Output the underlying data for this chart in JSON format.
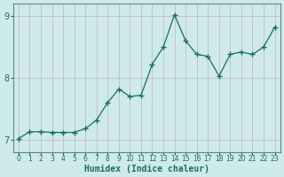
{
  "x": [
    0,
    1,
    2,
    3,
    4,
    5,
    6,
    7,
    8,
    9,
    10,
    11,
    12,
    13,
    14,
    15,
    16,
    17,
    18,
    19,
    20,
    21,
    22,
    23
  ],
  "y": [
    7.02,
    7.13,
    7.13,
    7.12,
    7.12,
    7.12,
    7.18,
    7.32,
    7.6,
    7.82,
    7.7,
    7.72,
    8.22,
    8.5,
    9.02,
    8.6,
    8.38,
    8.35,
    8.03,
    8.38,
    8.42,
    8.38,
    8.5,
    8.82
  ],
  "xlabel": "Humidex (Indice chaleur)",
  "ylim": [
    6.8,
    9.2
  ],
  "xlim": [
    -0.5,
    23.5
  ],
  "yticks": [
    7,
    8,
    9
  ],
  "xticks": [
    0,
    1,
    2,
    3,
    4,
    5,
    6,
    7,
    8,
    9,
    10,
    11,
    12,
    13,
    14,
    15,
    16,
    17,
    18,
    19,
    20,
    21,
    22,
    23
  ],
  "line_color": "#1a6e60",
  "marker": "+",
  "bg_color": "#ceeaea",
  "vgrid_color": "#c8b8c8",
  "hgrid_color": "#c8b8c8",
  "tick_label_color": "#1a6e60",
  "xlabel_color": "#1a6e60",
  "spine_color": "#5a8878"
}
